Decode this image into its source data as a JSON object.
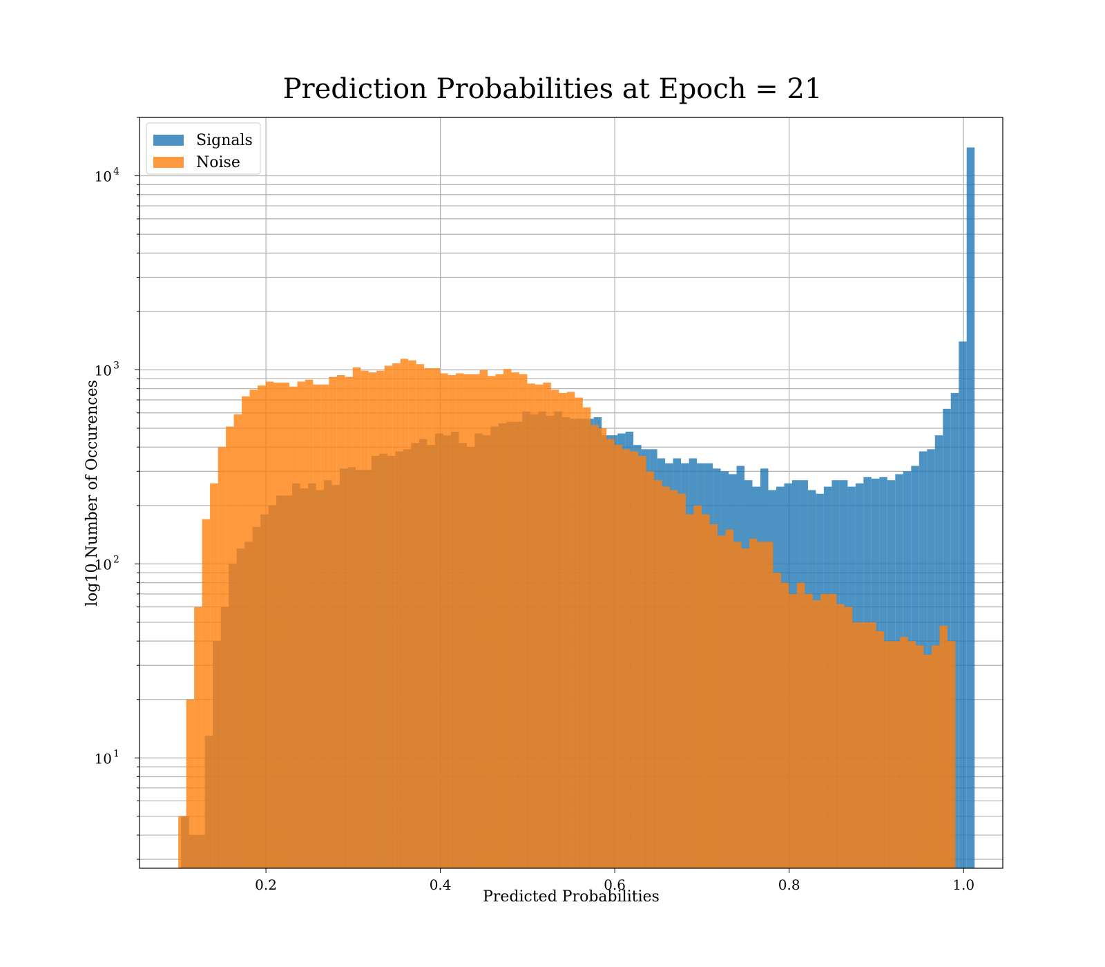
{
  "chart_data": {
    "type": "histogram",
    "title": "Prediction Probabilities at Epoch = 21",
    "xlabel": "Predicted Probabilities",
    "ylabel": "log10 Number of Occurences",
    "xlim": [
      0.055,
      1.045
    ],
    "ylim": [
      2.7,
      20000
    ],
    "yscale": "log",
    "grid": true,
    "legend_position": "top-left",
    "x_ticks": [
      "0.2",
      "0.4",
      "0.6",
      "0.8",
      "1.0"
    ],
    "y_ticks": [
      {
        "base": "10",
        "exp": "1",
        "value": 10
      },
      {
        "base": "10",
        "exp": "2",
        "value": 100
      },
      {
        "base": "10",
        "exp": "3",
        "value": 1000
      },
      {
        "base": "10",
        "exp": "4",
        "value": 10000
      }
    ],
    "series": [
      {
        "name": "Signals",
        "color": "#1f77b4",
        "opacity": 0.8,
        "bin_start": 0.1027,
        "bin_width": 0.0091,
        "values": [
          5,
          4,
          4,
          13,
          40,
          60,
          100,
          120,
          130,
          155,
          180,
          200,
          225,
          225,
          260,
          245,
          260,
          240,
          270,
          255,
          310,
          315,
          305,
          305,
          360,
          370,
          360,
          380,
          390,
          420,
          440,
          410,
          470,
          460,
          480,
          420,
          400,
          470,
          460,
          510,
          530,
          540,
          540,
          610,
          590,
          610,
          580,
          610,
          570,
          560,
          560,
          560,
          570,
          460,
          460,
          470,
          480,
          410,
          390,
          390,
          350,
          330,
          350,
          330,
          350,
          330,
          330,
          310,
          300,
          290,
          320,
          270,
          250,
          310,
          240,
          250,
          260,
          270,
          270,
          240,
          230,
          250,
          270,
          270,
          250,
          260,
          280,
          275,
          280,
          270,
          290,
          300,
          320,
          380,
          390,
          460,
          630,
          760,
          1400,
          14000
        ]
      },
      {
        "name": "Noise",
        "color": "#ff7f0e",
        "opacity": 0.8,
        "bin_start": 0.0995,
        "bin_width": 0.009094,
        "values": [
          5,
          20,
          60,
          170,
          260,
          400,
          510,
          590,
          730,
          790,
          830,
          870,
          860,
          860,
          820,
          870,
          890,
          840,
          840,
          920,
          940,
          920,
          1030,
          990,
          970,
          990,
          1050,
          1080,
          1140,
          1120,
          1070,
          1020,
          1020,
          960,
          940,
          960,
          950,
          950,
          1000,
          930,
          950,
          1010,
          970,
          950,
          850,
          840,
          860,
          790,
          760,
          770,
          720,
          640,
          520,
          500,
          440,
          410,
          390,
          380,
          360,
          300,
          270,
          250,
          240,
          230,
          180,
          200,
          180,
          160,
          140,
          150,
          130,
          120,
          135,
          130,
          130,
          90,
          80,
          70,
          80,
          70,
          65,
          70,
          70,
          62,
          60,
          50,
          50,
          50,
          45,
          40,
          40,
          42,
          40,
          38,
          34,
          38,
          48,
          40
        ]
      }
    ]
  }
}
